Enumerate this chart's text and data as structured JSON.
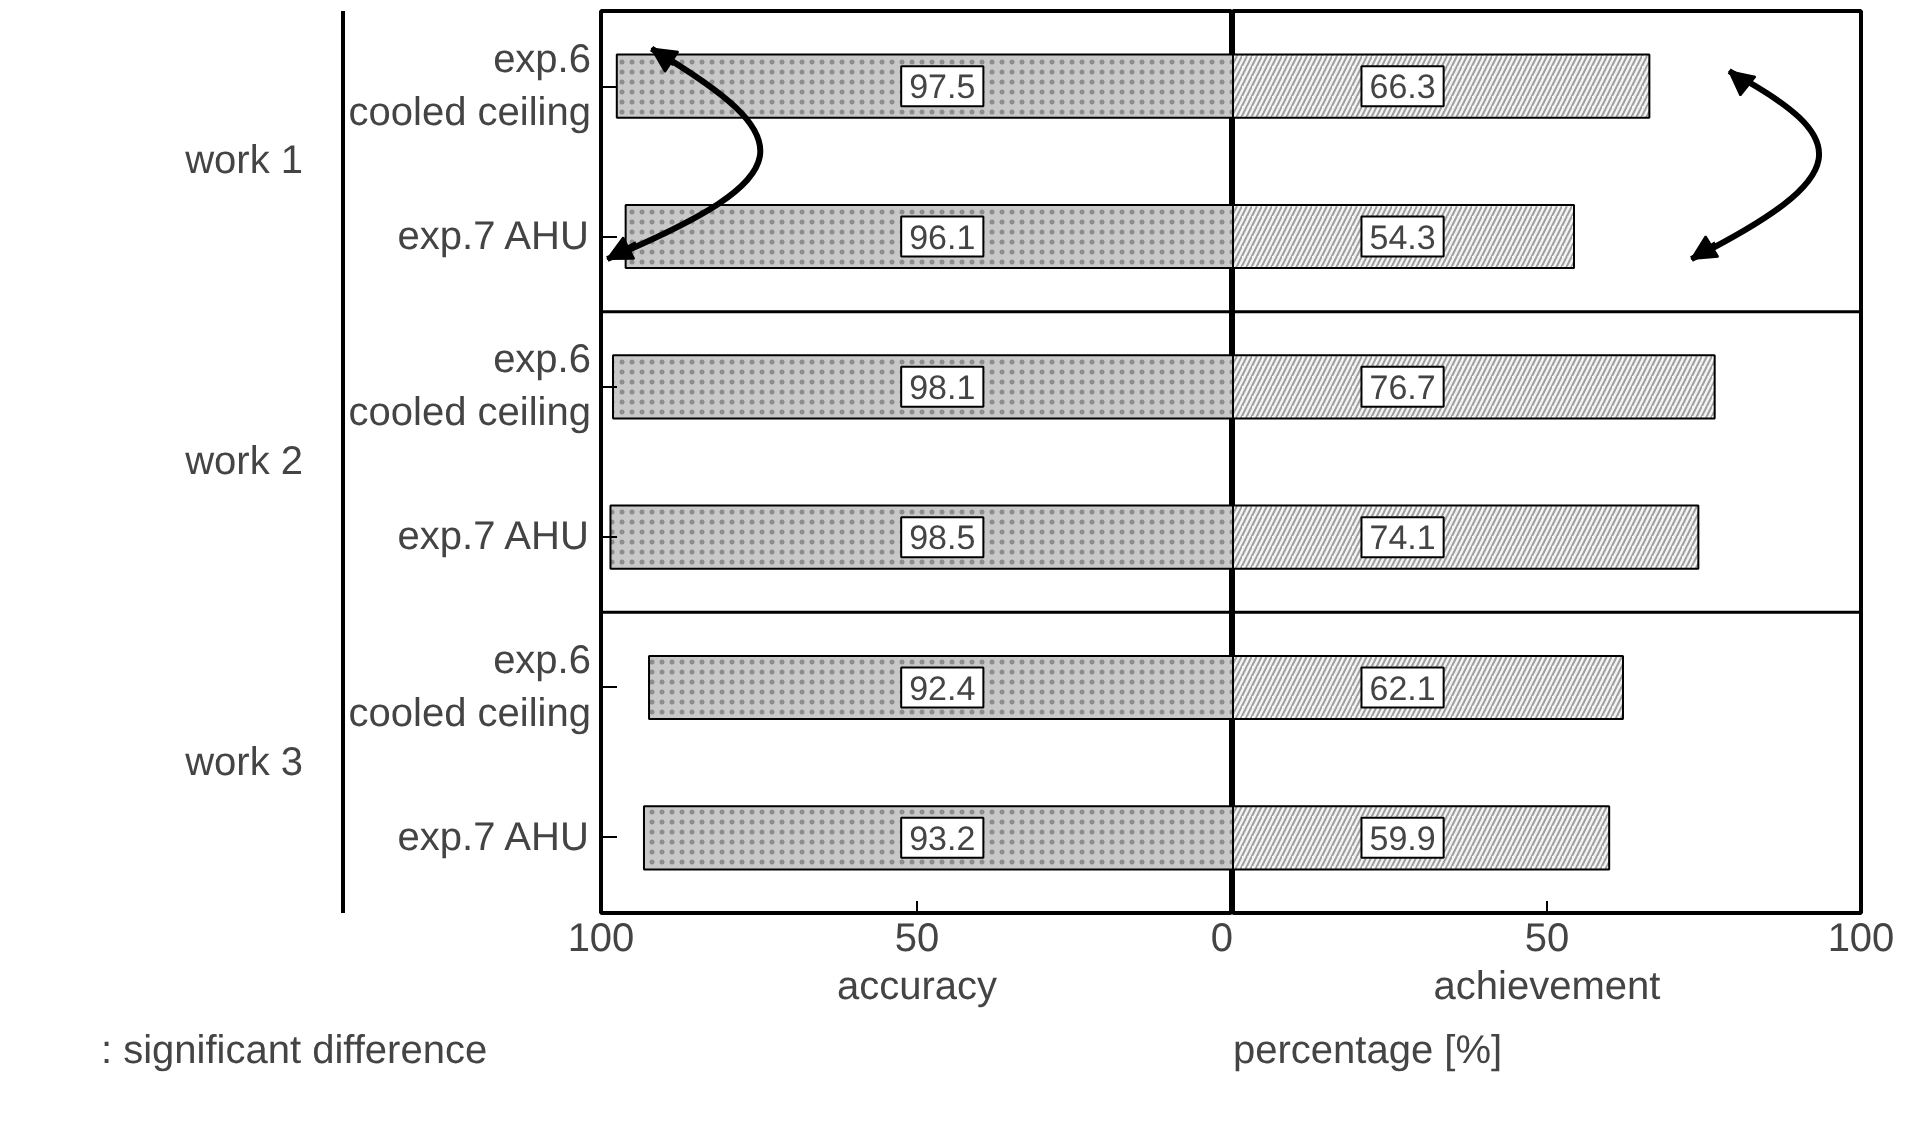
{
  "chart_data": [
    {
      "type": "bar",
      "orientation": "horizontal",
      "categories": [
        "exp.6\ncooled ceiling",
        "exp.7 AHU",
        "exp.6\ncooled ceiling",
        "exp.7 AHU",
        "exp.6\ncooled ceiling",
        "exp.7 AHU"
      ],
      "series": [
        {
          "color": "#c8c8c8",
          "values": [
            97.5,
            96.1,
            98.1,
            98.5,
            92.4,
            93.2
          ]
        }
      ],
      "data_labels": true,
      "xlabel": "accuracy",
      "xlim": [
        100,
        0
      ],
      "xticks": [
        100,
        50,
        0
      ],
      "annotations": [
        "work 1",
        "work 2",
        "work 3",
        ": significant difference"
      ],
      "grid": false
    },
    {
      "type": "bar",
      "orientation": "horizontal",
      "categories": [
        null,
        null,
        null,
        null,
        null,
        null
      ],
      "series": [
        {
          "color": "#f4f4f4",
          "values": [
            66.3,
            54.3,
            76.7,
            74.1,
            62.1,
            59.9
          ]
        }
      ],
      "data_labels": true,
      "xlabel": "achievement",
      "xlim": [
        0,
        100
      ],
      "xticks": [
        {
          "value": 0,
          "label": null
        },
        50,
        100
      ],
      "tick_labels": "x",
      "annotations": [
        "percentage [%]"
      ],
      "grid": false
    }
  ]
}
